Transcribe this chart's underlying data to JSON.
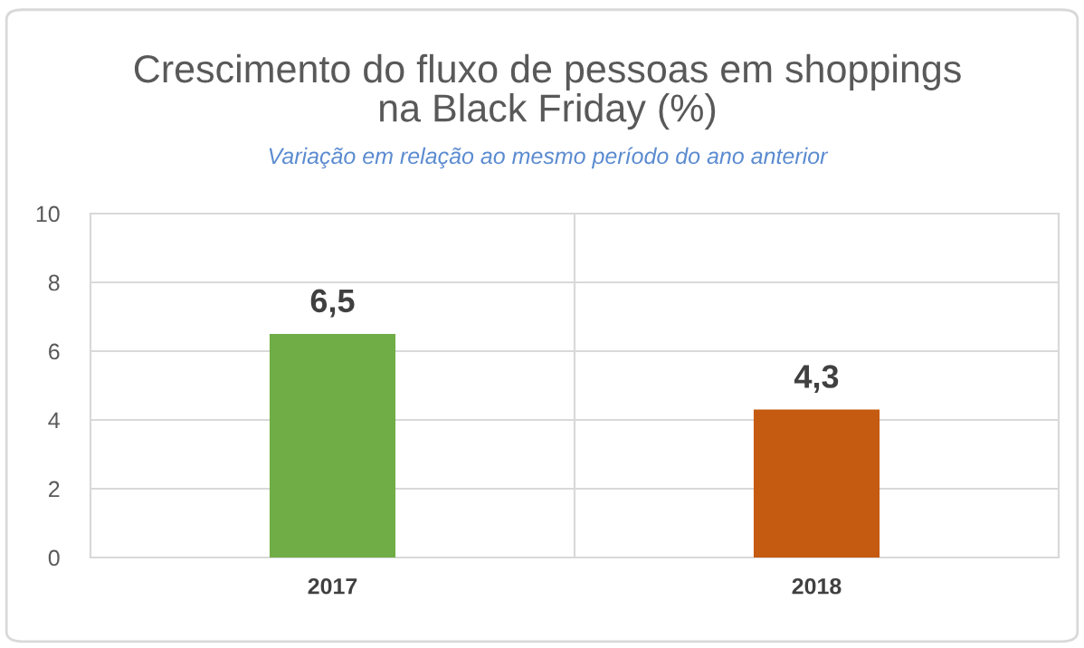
{
  "chart_data": {
    "type": "bar",
    "title": "Crescimento do fluxo de pessoas em shoppings\nna Black Friday (%)",
    "subtitle": "Variação em relação ao mesmo período do ano anterior",
    "categories": [
      "2017",
      "2018"
    ],
    "values": [
      6.5,
      4.3
    ],
    "colors": [
      "#70ad47",
      "#c55a11"
    ],
    "value_labels": [
      "6,5",
      "4,3"
    ],
    "ylim": [
      0,
      10
    ],
    "yticks": [
      0,
      2,
      4,
      6,
      8,
      10
    ],
    "grid": true
  }
}
